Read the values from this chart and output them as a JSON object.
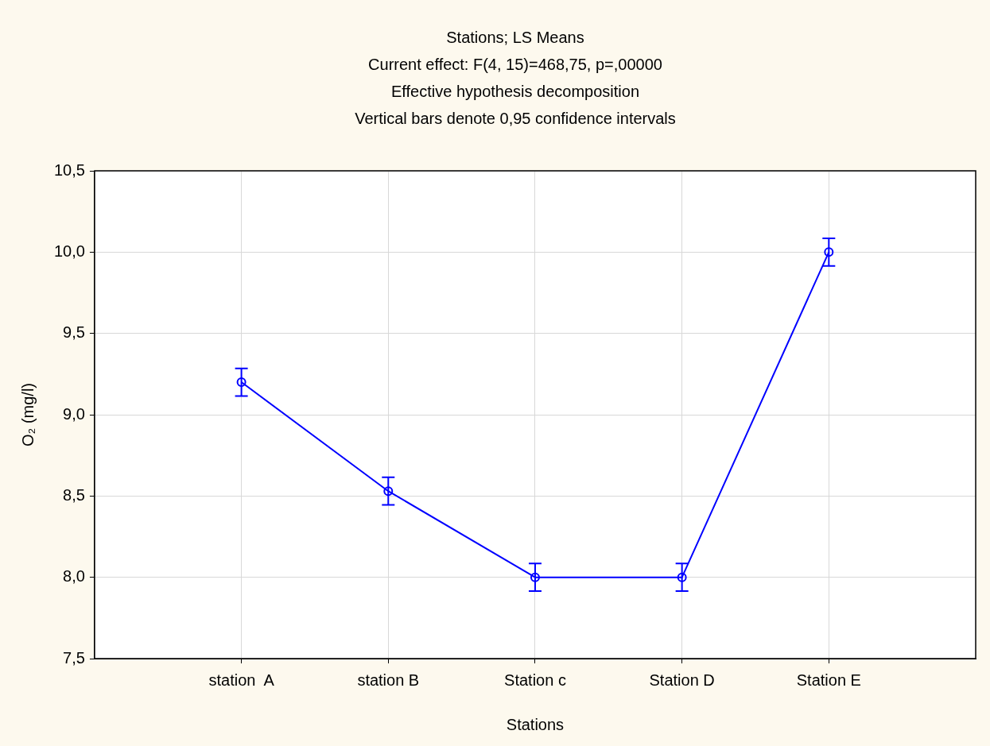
{
  "chart_data": {
    "type": "line",
    "title": "Stations; LS Means",
    "subtitle": "Current effect: F(4, 15)=468,75, p=,00000",
    "annotations": [
      "Effective hypothesis decomposition",
      "Vertical bars denote 0,95 confidence intervals"
    ],
    "xlabel": "Stations",
    "ylabel": "O₂ (mg/l)",
    "categories": [
      "station  A",
      "station B",
      "Station c",
      "Station D",
      "Station E"
    ],
    "series": [
      {
        "color": "#0000ff",
        "values": [
          9.2,
          8.53,
          8.0,
          8.0,
          10.0
        ],
        "errors": [
          0.085,
          0.085,
          0.085,
          0.085,
          0.085
        ]
      }
    ],
    "ylim": [
      7.5,
      10.5
    ],
    "yticks": [
      {
        "value": 7.5,
        "label": "7,5"
      },
      {
        "value": 8,
        "label": "8,0"
      },
      {
        "value": 8.5,
        "label": "8,5"
      },
      {
        "value": 9,
        "label": "9,0"
      },
      {
        "value": 9.5,
        "label": "9,5"
      },
      {
        "value": 10,
        "label": "10,0"
      },
      {
        "value": 10.5,
        "label": "10,5"
      }
    ],
    "grid": true,
    "legend": false,
    "marker": "circle",
    "line_style": "solid"
  }
}
